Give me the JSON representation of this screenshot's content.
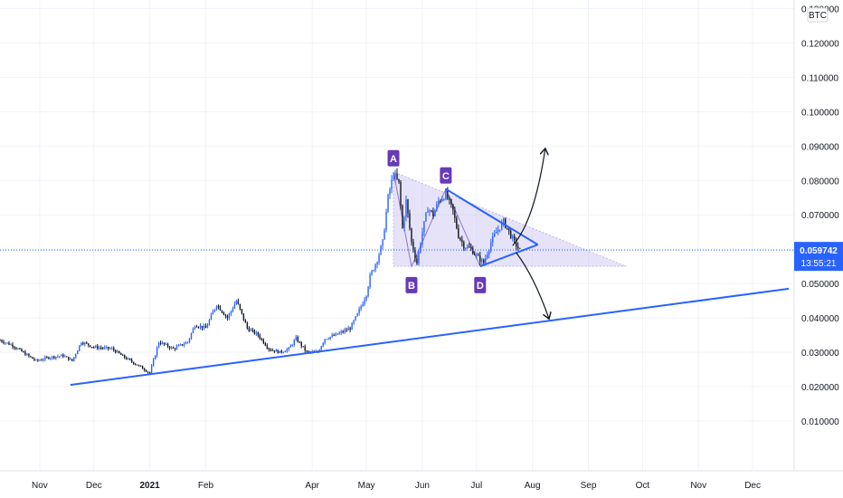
{
  "chart_data": {
    "type": "candlestick",
    "currency_label": "BTC",
    "price_axis_ticks": [
      "0.130000",
      "0.120000",
      "0.110000",
      "0.100000",
      "0.090000",
      "0.080000",
      "0.070000",
      "0.060000",
      "0.050000",
      "0.040000",
      "0.030000",
      "0.020000",
      "0.010000"
    ],
    "price_axis_values": [
      0.13,
      0.12,
      0.11,
      0.1,
      0.09,
      0.08,
      0.07,
      0.06,
      0.05,
      0.04,
      0.03,
      0.02,
      0.01
    ],
    "ylim": [
      -0.0045,
      0.1325
    ],
    "time_axis_ticks": [
      {
        "label": "Nov",
        "day": 0,
        "bold": false
      },
      {
        "label": "Dec",
        "day": 30,
        "bold": false
      },
      {
        "label": "2021",
        "day": 61,
        "bold": true
      },
      {
        "label": "Feb",
        "day": 92,
        "bold": false
      },
      {
        "label": "Apr",
        "day": 151,
        "bold": false
      },
      {
        "label": "May",
        "day": 181,
        "bold": false
      },
      {
        "label": "Jun",
        "day": 212,
        "bold": false
      },
      {
        "label": "Jul",
        "day": 242,
        "bold": false
      },
      {
        "label": "Aug",
        "day": 273,
        "bold": false
      },
      {
        "label": "Sep",
        "day": 304,
        "bold": false
      },
      {
        "label": "Oct",
        "day": 334,
        "bold": false
      },
      {
        "label": "Nov",
        "day": 365,
        "bold": false
      },
      {
        "label": "Dec",
        "day": 395,
        "bold": false
      }
    ],
    "xlim_days": [
      -22,
      418
    ],
    "price_path": [
      {
        "day": -22,
        "price": 0.0335
      },
      {
        "day": -15,
        "price": 0.032
      },
      {
        "day": -8,
        "price": 0.0295
      },
      {
        "day": -2,
        "price": 0.0275
      },
      {
        "day": 5,
        "price": 0.0285
      },
      {
        "day": 13,
        "price": 0.029
      },
      {
        "day": 18,
        "price": 0.0275
      },
      {
        "day": 23,
        "price": 0.033
      },
      {
        "day": 30,
        "price": 0.0315
      },
      {
        "day": 40,
        "price": 0.031
      },
      {
        "day": 47,
        "price": 0.0285
      },
      {
        "day": 55,
        "price": 0.026
      },
      {
        "day": 61,
        "price": 0.024
      },
      {
        "day": 66,
        "price": 0.033
      },
      {
        "day": 74,
        "price": 0.031
      },
      {
        "day": 82,
        "price": 0.033
      },
      {
        "day": 86,
        "price": 0.038
      },
      {
        "day": 92,
        "price": 0.037
      },
      {
        "day": 98,
        "price": 0.044
      },
      {
        "day": 104,
        "price": 0.04
      },
      {
        "day": 109,
        "price": 0.045
      },
      {
        "day": 115,
        "price": 0.037
      },
      {
        "day": 121,
        "price": 0.035
      },
      {
        "day": 127,
        "price": 0.031
      },
      {
        "day": 133,
        "price": 0.03
      },
      {
        "day": 138,
        "price": 0.031
      },
      {
        "day": 142,
        "price": 0.034
      },
      {
        "day": 148,
        "price": 0.03
      },
      {
        "day": 154,
        "price": 0.03
      },
      {
        "day": 158,
        "price": 0.034
      },
      {
        "day": 164,
        "price": 0.035
      },
      {
        "day": 172,
        "price": 0.037
      },
      {
        "day": 176,
        "price": 0.041
      },
      {
        "day": 181,
        "price": 0.047
      },
      {
        "day": 183,
        "price": 0.052
      },
      {
        "day": 187,
        "price": 0.057
      },
      {
        "day": 190,
        "price": 0.062
      },
      {
        "day": 193,
        "price": 0.075
      },
      {
        "day": 196,
        "price": 0.082
      },
      {
        "day": 199,
        "price": 0.079
      },
      {
        "day": 201,
        "price": 0.066
      },
      {
        "day": 203,
        "price": 0.074
      },
      {
        "day": 206,
        "price": 0.062
      },
      {
        "day": 209,
        "price": 0.056
      },
      {
        "day": 212,
        "price": 0.065
      },
      {
        "day": 215,
        "price": 0.072
      },
      {
        "day": 218,
        "price": 0.07
      },
      {
        "day": 221,
        "price": 0.074
      },
      {
        "day": 225,
        "price": 0.076
      },
      {
        "day": 229,
        "price": 0.071
      },
      {
        "day": 232,
        "price": 0.064
      },
      {
        "day": 235,
        "price": 0.061
      },
      {
        "day": 239,
        "price": 0.06
      },
      {
        "day": 242,
        "price": 0.058
      },
      {
        "day": 246,
        "price": 0.056
      },
      {
        "day": 250,
        "price": 0.062
      },
      {
        "day": 253,
        "price": 0.065
      },
      {
        "day": 257,
        "price": 0.068
      },
      {
        "day": 260,
        "price": 0.065
      },
      {
        "day": 263,
        "price": 0.062
      },
      {
        "day": 266,
        "price": 0.0597
      }
    ],
    "annotations": {
      "points": [
        {
          "label": "A",
          "day": 196,
          "price": 0.0825,
          "position": "above"
        },
        {
          "label": "B",
          "day": 206,
          "price": 0.0535,
          "position": "below"
        },
        {
          "label": "C",
          "day": 225,
          "price": 0.0775,
          "position": "above"
        },
        {
          "label": "D",
          "day": 244,
          "price": 0.0535,
          "position": "below"
        }
      ],
      "shaded_triangle": [
        {
          "day": 196,
          "price": 0.0825
        },
        {
          "day": 196,
          "price": 0.055
        },
        {
          "day": 325,
          "price": 0.055
        }
      ],
      "abcd_path": [
        {
          "day": 196,
          "price": 0.0825
        },
        {
          "day": 206,
          "price": 0.055
        },
        {
          "day": 225,
          "price": 0.0775
        },
        {
          "day": 244,
          "price": 0.055
        }
      ],
      "triangle_upper": [
        {
          "day": 225,
          "price": 0.0775
        },
        {
          "day": 276,
          "price": 0.0613
        }
      ],
      "triangle_lower": [
        {
          "day": 244,
          "price": 0.055
        },
        {
          "day": 276,
          "price": 0.0613
        }
      ],
      "support_line": [
        {
          "day": 17,
          "price": 0.0205
        },
        {
          "day": 415,
          "price": 0.0485
        }
      ],
      "arrow_up": [
        {
          "day": 262,
          "price": 0.061
        },
        {
          "day": 274,
          "price": 0.068
        },
        {
          "day": 280,
          "price": 0.089
        }
      ],
      "arrow_down": [
        {
          "day": 264,
          "price": 0.059
        },
        {
          "day": 274,
          "price": 0.052
        },
        {
          "day": 282,
          "price": 0.04
        }
      ]
    },
    "last_price": {
      "value": "0.059742",
      "countdown": "13:55:21",
      "price": 0.059742
    }
  },
  "colors": {
    "up_candle": "#2962ff",
    "down_candle": "#131722",
    "support_line": "#2962ff",
    "pattern_fill": "#9c8fe6",
    "label_bg": "#673ab7",
    "last_price_bg": "#2962ff",
    "last_price_line": "#2962ff"
  }
}
